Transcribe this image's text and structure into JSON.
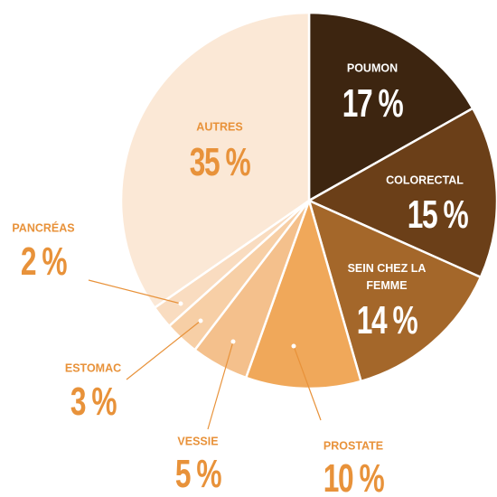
{
  "chart_data": {
    "type": "pie",
    "categories": [
      "POUMON",
      "COLORECTAL",
      "SEIN CHEZ LA FEMME",
      "PROSTATE",
      "VESSIE",
      "ESTOMAC",
      "PANCRÉAS",
      "AUTRES"
    ],
    "values": [
      17,
      15,
      14,
      10,
      5,
      3,
      2,
      35
    ],
    "value_labels": [
      "17 %",
      "15 %",
      "14 %",
      "10 %",
      "5 %",
      "3 %",
      "2 %",
      "35 %"
    ],
    "colors": [
      "#3d2510",
      "#6b3f18",
      "#a4672a",
      "#f0a85a",
      "#f4c08c",
      "#f7cfa6",
      "#f9dcc0",
      "#fbe8d6"
    ]
  }
}
